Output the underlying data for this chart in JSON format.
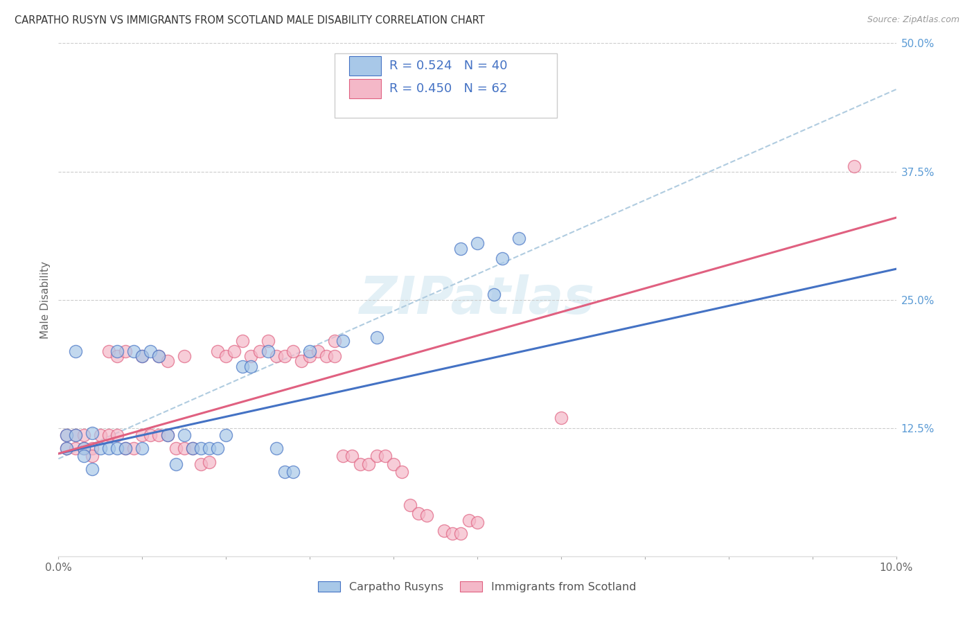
{
  "title": "CARPATHO RUSYN VS IMMIGRANTS FROM SCOTLAND MALE DISABILITY CORRELATION CHART",
  "source": "Source: ZipAtlas.com",
  "ylabel": "Male Disability",
  "xlim": [
    0.0,
    0.1
  ],
  "ylim": [
    0.0,
    0.5
  ],
  "ytick_labels": [
    "12.5%",
    "25.0%",
    "37.5%",
    "50.0%"
  ],
  "ytick_positions": [
    0.125,
    0.25,
    0.375,
    0.5
  ],
  "blue_color": "#a8c8e8",
  "pink_color": "#f4b8c8",
  "blue_edge_color": "#4472c4",
  "pink_edge_color": "#e06080",
  "blue_line_color": "#4472c4",
  "pink_line_color": "#e06080",
  "dashed_line_color": "#b0cce0",
  "watermark": "ZIPatlas",
  "blue_line": {
    "x0": 0.0,
    "y0": 0.1,
    "x1": 0.1,
    "y1": 0.28
  },
  "pink_line": {
    "x0": 0.0,
    "y0": 0.1,
    "x1": 0.1,
    "y1": 0.33
  },
  "dash_line": {
    "x0": 0.0,
    "y0": 0.095,
    "x1": 0.1,
    "y1": 0.455
  },
  "blue_points": [
    [
      0.001,
      0.105
    ],
    [
      0.001,
      0.118
    ],
    [
      0.002,
      0.118
    ],
    [
      0.002,
      0.2
    ],
    [
      0.003,
      0.105
    ],
    [
      0.003,
      0.098
    ],
    [
      0.004,
      0.085
    ],
    [
      0.004,
      0.12
    ],
    [
      0.005,
      0.105
    ],
    [
      0.006,
      0.105
    ],
    [
      0.007,
      0.105
    ],
    [
      0.007,
      0.2
    ],
    [
      0.008,
      0.105
    ],
    [
      0.009,
      0.2
    ],
    [
      0.01,
      0.105
    ],
    [
      0.01,
      0.195
    ],
    [
      0.011,
      0.2
    ],
    [
      0.012,
      0.195
    ],
    [
      0.013,
      0.118
    ],
    [
      0.014,
      0.09
    ],
    [
      0.015,
      0.118
    ],
    [
      0.016,
      0.105
    ],
    [
      0.017,
      0.105
    ],
    [
      0.018,
      0.105
    ],
    [
      0.019,
      0.105
    ],
    [
      0.02,
      0.118
    ],
    [
      0.022,
      0.185
    ],
    [
      0.023,
      0.185
    ],
    [
      0.025,
      0.2
    ],
    [
      0.026,
      0.105
    ],
    [
      0.027,
      0.082
    ],
    [
      0.028,
      0.082
    ],
    [
      0.03,
      0.2
    ],
    [
      0.034,
      0.21
    ],
    [
      0.038,
      0.213
    ],
    [
      0.048,
      0.3
    ],
    [
      0.05,
      0.305
    ],
    [
      0.052,
      0.255
    ],
    [
      0.053,
      0.29
    ],
    [
      0.055,
      0.31
    ]
  ],
  "pink_points": [
    [
      0.001,
      0.105
    ],
    [
      0.001,
      0.118
    ],
    [
      0.002,
      0.105
    ],
    [
      0.002,
      0.118
    ],
    [
      0.003,
      0.105
    ],
    [
      0.003,
      0.118
    ],
    [
      0.004,
      0.105
    ],
    [
      0.004,
      0.098
    ],
    [
      0.005,
      0.118
    ],
    [
      0.006,
      0.118
    ],
    [
      0.006,
      0.2
    ],
    [
      0.007,
      0.118
    ],
    [
      0.007,
      0.195
    ],
    [
      0.008,
      0.105
    ],
    [
      0.008,
      0.2
    ],
    [
      0.009,
      0.105
    ],
    [
      0.01,
      0.118
    ],
    [
      0.01,
      0.195
    ],
    [
      0.011,
      0.118
    ],
    [
      0.012,
      0.118
    ],
    [
      0.012,
      0.195
    ],
    [
      0.013,
      0.118
    ],
    [
      0.013,
      0.19
    ],
    [
      0.014,
      0.105
    ],
    [
      0.015,
      0.105
    ],
    [
      0.015,
      0.195
    ],
    [
      0.016,
      0.105
    ],
    [
      0.017,
      0.09
    ],
    [
      0.018,
      0.092
    ],
    [
      0.019,
      0.2
    ],
    [
      0.02,
      0.195
    ],
    [
      0.021,
      0.2
    ],
    [
      0.022,
      0.21
    ],
    [
      0.023,
      0.195
    ],
    [
      0.024,
      0.2
    ],
    [
      0.025,
      0.21
    ],
    [
      0.026,
      0.195
    ],
    [
      0.027,
      0.195
    ],
    [
      0.028,
      0.2
    ],
    [
      0.029,
      0.19
    ],
    [
      0.03,
      0.195
    ],
    [
      0.031,
      0.2
    ],
    [
      0.032,
      0.195
    ],
    [
      0.033,
      0.21
    ],
    [
      0.033,
      0.195
    ],
    [
      0.034,
      0.098
    ],
    [
      0.035,
      0.098
    ],
    [
      0.036,
      0.09
    ],
    [
      0.037,
      0.09
    ],
    [
      0.038,
      0.098
    ],
    [
      0.039,
      0.098
    ],
    [
      0.04,
      0.09
    ],
    [
      0.041,
      0.082
    ],
    [
      0.042,
      0.05
    ],
    [
      0.043,
      0.042
    ],
    [
      0.044,
      0.04
    ],
    [
      0.046,
      0.025
    ],
    [
      0.047,
      0.022
    ],
    [
      0.048,
      0.022
    ],
    [
      0.049,
      0.035
    ],
    [
      0.05,
      0.033
    ],
    [
      0.06,
      0.135
    ],
    [
      0.095,
      0.38
    ]
  ]
}
